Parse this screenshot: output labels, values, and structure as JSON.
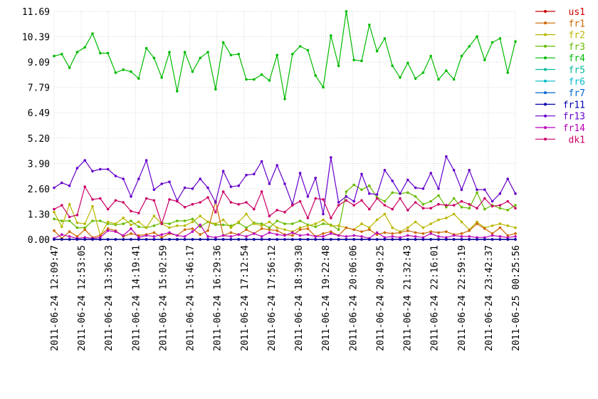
{
  "chart_data": {
    "type": "line",
    "ylim": [
      0,
      11.69
    ],
    "y_ticks": [
      "0.00",
      "1.30",
      "2.60",
      "3.90",
      "5.20",
      "6.49",
      "7.79",
      "9.09",
      "10.39",
      "11.69"
    ],
    "x_ticks": [
      "2011-06-24 12:09:47",
      "2011-06-24 12:53:05",
      "2011-06-24 13:36:23",
      "2011-06-24 14:19:41",
      "2011-06-24 15:02:59",
      "2011-06-24 15:46:17",
      "2011-06-24 16:29:36",
      "2011-06-24 17:12:54",
      "2011-06-24 17:56:12",
      "2011-06-24 18:39:30",
      "2011-06-24 19:22:48",
      "2011-06-24 20:06:06",
      "2011-06-24 20:49:25",
      "2011-06-24 21:32:43",
      "2011-06-24 22:16:01",
      "2011-06-24 22:59:19",
      "2011-06-24 23:42:37",
      "2011-06-25 00:25:56"
    ],
    "grid": true,
    "legend_position": "right",
    "n_points": 61,
    "series": [
      {
        "name": "us1",
        "color": "#cc0000",
        "values": [
          0,
          0,
          0,
          0,
          0,
          0,
          0,
          0,
          0,
          0,
          0,
          0,
          0,
          0,
          0,
          0,
          0,
          0,
          0,
          0,
          0,
          0,
          0,
          0,
          0,
          0,
          0,
          0,
          0,
          0,
          0,
          0,
          0,
          0,
          0,
          0,
          0,
          0,
          0,
          0,
          0,
          0,
          0,
          0,
          0,
          0,
          0,
          0,
          0,
          0,
          0,
          0,
          0,
          0,
          0,
          0,
          0,
          0,
          0,
          0,
          0
        ]
      },
      {
        "name": "fr1",
        "color": "#cc6600",
        "values": [
          0.45,
          0.05,
          0.4,
          0.15,
          0.5,
          0.1,
          0.2,
          0.55,
          0.45,
          0.15,
          0.3,
          0.2,
          0.25,
          0.35,
          0.1,
          0.3,
          0.2,
          0.5,
          0.55,
          0.25,
          0.45,
          1.95,
          0.2,
          0.35,
          0.25,
          0.5,
          0.3,
          0.55,
          0.5,
          0.45,
          0.25,
          0.2,
          0.5,
          0.55,
          0.15,
          0.3,
          0.4,
          0.2,
          0.6,
          0.5,
          0.4,
          0.5,
          0.25,
          0.35,
          0.3,
          0.35,
          0.45,
          0.35,
          0.3,
          0.4,
          0.35,
          0.4,
          0.25,
          0.3,
          0.45,
          0.8,
          0.55,
          0.3,
          0.6,
          0.2,
          0.3
        ]
      },
      {
        "name": "fr2",
        "color": "#b8b800",
        "values": [
          1.4,
          0.65,
          1.8,
          0.85,
          0.8,
          1.7,
          0.2,
          0.9,
          0.8,
          1.1,
          0.75,
          0.9,
          0.6,
          1.2,
          0.8,
          0.6,
          0.7,
          0.7,
          0.9,
          1.2,
          0.9,
          0.8,
          1.0,
          0.6,
          0.9,
          1.3,
          0.8,
          0.7,
          0.9,
          0.6,
          0.5,
          0.4,
          0.6,
          0.7,
          0.8,
          1.0,
          0.7,
          0.7,
          0.6,
          0.5,
          0.8,
          0.6,
          1.0,
          1.3,
          0.6,
          0.4,
          0.6,
          0.9,
          0.6,
          0.8,
          1.0,
          1.1,
          1.3,
          0.9,
          0.5,
          0.9,
          0.6,
          0.7,
          0.8,
          0.7,
          0.6
        ]
      },
      {
        "name": "fr3",
        "color": "#66bb00",
        "values": [
          1.05,
          0.95,
          0.95,
          0.6,
          0.6,
          0.95,
          0.95,
          0.8,
          0.75,
          0.8,
          0.95,
          0.65,
          0.6,
          0.7,
          0.85,
          0.8,
          0.95,
          0.95,
          1.05,
          0.65,
          0.9,
          0.75,
          0.75,
          0.7,
          0.85,
          0.6,
          0.85,
          0.8,
          0.6,
          0.95,
          0.8,
          0.8,
          0.95,
          0.75,
          0.65,
          0.8,
          0.75,
          0.5,
          2.45,
          2.8,
          2.55,
          2.75,
          2.15,
          1.95,
          2.4,
          2.35,
          2.4,
          2.2,
          1.8,
          1.95,
          2.25,
          1.65,
          2.1,
          1.65,
          1.6,
          2.4,
          1.55,
          1.75,
          1.6,
          1.5,
          1.75
        ]
      },
      {
        "name": "fr4",
        "color": "#00bb00",
        "values": [
          9.4,
          9.5,
          8.8,
          9.6,
          9.85,
          10.55,
          9.55,
          9.55,
          8.55,
          8.7,
          8.6,
          8.25,
          9.8,
          9.3,
          8.3,
          9.6,
          7.6,
          9.6,
          8.6,
          9.3,
          9.6,
          7.7,
          10.1,
          9.45,
          9.5,
          8.2,
          8.2,
          8.45,
          8.15,
          9.45,
          7.2,
          9.5,
          9.9,
          9.7,
          8.4,
          7.8,
          10.45,
          8.9,
          11.69,
          9.2,
          9.15,
          11.0,
          9.65,
          10.3,
          8.9,
          8.3,
          9.05,
          8.25,
          8.55,
          9.4,
          8.2,
          8.65,
          8.2,
          9.4,
          9.9,
          10.4,
          9.2,
          10.1,
          10.3,
          8.55,
          10.15
        ]
      },
      {
        "name": "fr5",
        "color": "#00bb99",
        "values": [
          0,
          0,
          0,
          0,
          0,
          0,
          0,
          0,
          0,
          0,
          0,
          0,
          0,
          0,
          0,
          0,
          0,
          0,
          0,
          0,
          0,
          0,
          0,
          0,
          0,
          0,
          0,
          0,
          0,
          0,
          0,
          0,
          0,
          0,
          0,
          0,
          0,
          0,
          0,
          0,
          0,
          0,
          0,
          0,
          0,
          0,
          0,
          0,
          0,
          0,
          0,
          0,
          0,
          0,
          0,
          0,
          0,
          0,
          0,
          0,
          0
        ]
      },
      {
        "name": "fr6",
        "color": "#00bbcc",
        "values": [
          0,
          0,
          0,
          0,
          0,
          0,
          0,
          0,
          0,
          0,
          0,
          0,
          0,
          0,
          0,
          0,
          0,
          0,
          0,
          0,
          0,
          0,
          0,
          0,
          0,
          0,
          0,
          0,
          0,
          0,
          0,
          0,
          0,
          0,
          0,
          0,
          0,
          0,
          0,
          0,
          0,
          0,
          0,
          0,
          0,
          0,
          0,
          0,
          0,
          0,
          0,
          0,
          0,
          0,
          0,
          0,
          0,
          0,
          0,
          0,
          0
        ]
      },
      {
        "name": "fr7",
        "color": "#0066cc",
        "values": [
          0,
          0,
          0,
          0,
          0,
          0,
          0,
          0,
          0,
          0,
          0,
          0,
          0,
          0,
          0,
          0,
          0,
          0,
          0,
          0,
          0,
          0,
          0,
          0,
          0,
          0,
          0,
          0,
          0,
          0,
          0,
          0,
          0,
          0,
          0,
          0,
          0,
          0,
          0,
          0,
          0,
          0,
          0,
          0,
          0,
          0,
          0,
          0,
          0,
          0,
          0,
          0,
          0,
          0,
          0,
          0,
          0,
          0,
          0,
          0,
          0
        ]
      },
      {
        "name": "fr11",
        "color": "#0000aa",
        "values": [
          0,
          0,
          0,
          0,
          0,
          0,
          0,
          0,
          0,
          0,
          0,
          0,
          0,
          0,
          0,
          0,
          0,
          0,
          0,
          0,
          0,
          0,
          0,
          0,
          0,
          0,
          0,
          0,
          0,
          0,
          0,
          0,
          0,
          0,
          0,
          0,
          0,
          0,
          0,
          0,
          0,
          0,
          0,
          0,
          0,
          0,
          0,
          0,
          0,
          0,
          0,
          0,
          0,
          0,
          0,
          0,
          0,
          0,
          0,
          0,
          0
        ]
      },
      {
        "name": "fr13",
        "color": "#6600cc",
        "values": [
          2.65,
          2.9,
          2.75,
          3.65,
          4.05,
          3.5,
          3.6,
          3.6,
          3.25,
          3.1,
          2.2,
          3.1,
          4.05,
          2.55,
          2.85,
          2.95,
          2.0,
          2.65,
          2.6,
          3.1,
          2.65,
          1.9,
          3.5,
          2.7,
          2.75,
          3.3,
          3.35,
          4.0,
          2.85,
          3.8,
          2.85,
          1.8,
          3.4,
          2.2,
          3.15,
          1.3,
          4.2,
          1.9,
          2.2,
          1.95,
          3.35,
          2.35,
          2.3,
          3.55,
          3.0,
          2.35,
          3.05,
          2.65,
          2.6,
          3.4,
          2.6,
          4.25,
          3.55,
          2.55,
          3.55,
          2.55,
          2.55,
          1.95,
          2.35,
          3.1,
          2.35
        ]
      },
      {
        "name": "fr14",
        "color": "#bb00bb",
        "values": [
          0.05,
          0.25,
          0.15,
          0.05,
          0.1,
          0.05,
          0.1,
          0.45,
          0.4,
          0.2,
          0.55,
          0.1,
          0.2,
          0.15,
          0.25,
          0.35,
          0.2,
          0.15,
          0.4,
          0.75,
          0.15,
          0.1,
          0.2,
          0.15,
          0.25,
          0.15,
          0.3,
          0.15,
          0.35,
          0.25,
          0.2,
          0.35,
          0.2,
          0.25,
          0.15,
          0.15,
          0.3,
          0.2,
          0.15,
          0.2,
          0.15,
          0.05,
          0.35,
          0.1,
          0.15,
          0.1,
          0.2,
          0.15,
          0.1,
          0.3,
          0.15,
          0.1,
          0.2,
          0.15,
          0.15,
          0.1,
          0.1,
          0.2,
          0.15,
          0.1,
          0.15
        ]
      },
      {
        "name": "dk1",
        "color": "#cc0066",
        "values": [
          1.55,
          1.75,
          1.15,
          1.25,
          2.7,
          2.05,
          2.1,
          1.55,
          2.0,
          1.9,
          1.45,
          1.35,
          2.1,
          2.0,
          0.8,
          2.05,
          1.95,
          1.65,
          1.8,
          1.9,
          2.15,
          1.4,
          2.45,
          1.9,
          1.8,
          1.9,
          1.55,
          2.45,
          1.2,
          1.5,
          1.4,
          1.75,
          1.95,
          1.1,
          2.1,
          2.05,
          1.1,
          1.75,
          2.0,
          1.75,
          2.0,
          1.55,
          2.1,
          1.75,
          1.55,
          2.1,
          1.5,
          1.9,
          1.6,
          1.6,
          1.8,
          1.75,
          1.75,
          1.95,
          1.8,
          1.6,
          2.1,
          1.7,
          1.75,
          1.95,
          1.6
        ]
      }
    ]
  }
}
